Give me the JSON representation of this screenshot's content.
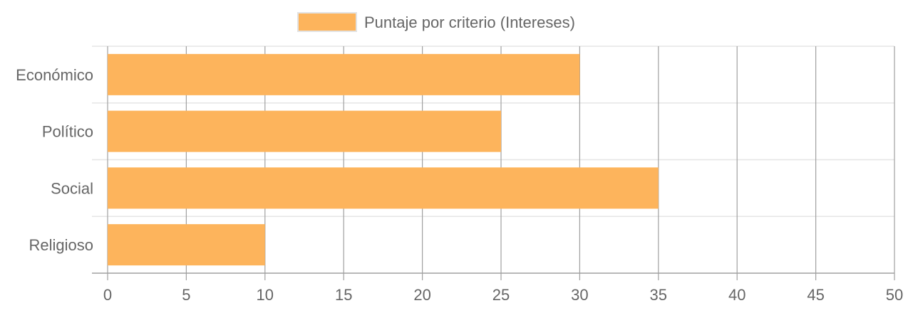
{
  "chart_data": {
    "type": "bar",
    "orientation": "horizontal",
    "categories": [
      "Económico",
      "Político",
      "Social",
      "Religioso"
    ],
    "series": [
      {
        "name": "Puntaje por criterio (Intereses)",
        "values": [
          30,
          25,
          35,
          10
        ],
        "color": "#FDB45C"
      }
    ],
    "x_ticks": [
      "0",
      "5",
      "10",
      "15",
      "20",
      "25",
      "30",
      "35",
      "40",
      "45",
      "50"
    ],
    "xlim": [
      0,
      50
    ],
    "grid": true,
    "legend_position": "top"
  },
  "colors": {
    "bar_fill": "#FDB45C",
    "grid": "#e5e5e5",
    "vertical_grid": "#a0a0a0",
    "text": "#666666"
  }
}
